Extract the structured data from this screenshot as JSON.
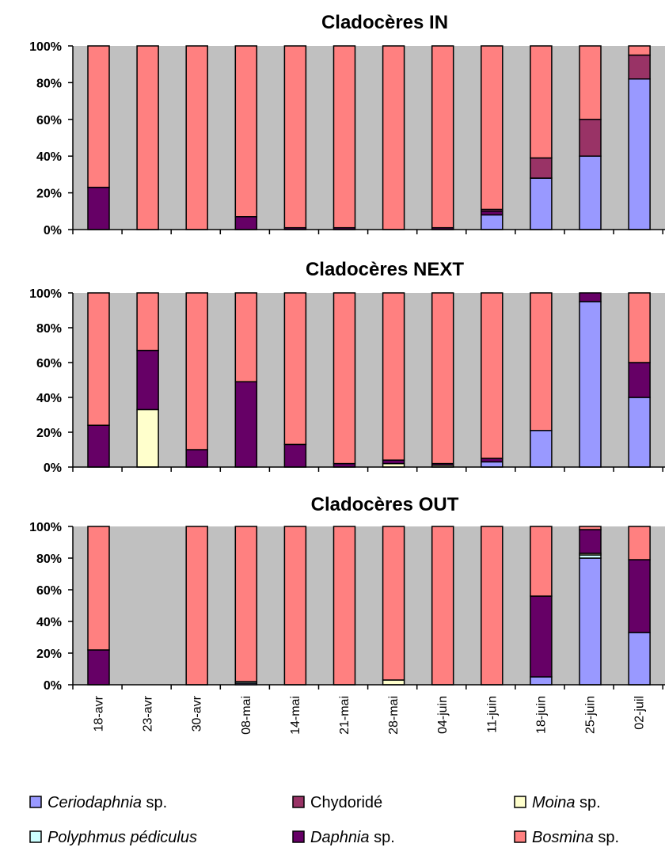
{
  "chart_data": {
    "type": "bar",
    "stacked": true,
    "normalized": true,
    "categories": [
      "18-avr",
      "23-avr",
      "30-avr",
      "08-mai",
      "14-mai",
      "21-mai",
      "28-mai",
      "04-juin",
      "11-juin",
      "18-juin",
      "25-juin",
      "02-juil"
    ],
    "ylim": [
      0,
      100
    ],
    "yticks": [
      "0%",
      "20%",
      "40%",
      "60%",
      "80%",
      "100%"
    ],
    "grid": false,
    "legend": {
      "position": "bottom",
      "items": [
        {
          "key": "ceriodaphnia",
          "italic": "Ceriodaphnia",
          "rest": " sp."
        },
        {
          "key": "chydoride",
          "italic": "",
          "rest": "Chydoridé"
        },
        {
          "key": "moina",
          "italic": "Moina",
          "rest": " sp."
        },
        {
          "key": "polyphemus",
          "italic": "Polyphmus pédiculus",
          "rest": ""
        },
        {
          "key": "daphnia",
          "italic": "Daphnia",
          "rest": " sp."
        },
        {
          "key": "bosmina",
          "italic": "Bosmina",
          "rest": " sp."
        }
      ]
    },
    "colors": {
      "ceriodaphnia": "#9999FF",
      "polyphemus": "#CCFFFF",
      "moina": "#FFFFCC",
      "daphnia": "#660066",
      "chydoride": "#993366",
      "bosmina": "#FF8080",
      "plot_bg": "#C0C0C0"
    },
    "stack_order": [
      "ceriodaphnia",
      "polyphemus",
      "moina",
      "daphnia",
      "chydoride",
      "bosmina"
    ],
    "panels": [
      {
        "title": "Cladocères IN",
        "series": {
          "ceriodaphnia": [
            0,
            0,
            0,
            0,
            0,
            0,
            0,
            0,
            8,
            28,
            40,
            82
          ],
          "polyphemus": [
            0,
            0,
            0,
            0,
            0,
            0,
            0,
            0,
            0,
            0,
            0,
            0
          ],
          "moina": [
            0,
            0,
            0,
            0,
            0,
            0,
            0,
            0,
            0,
            0,
            0,
            0
          ],
          "daphnia": [
            23,
            0,
            0,
            7,
            1,
            1,
            0,
            1,
            2,
            0,
            0,
            0
          ],
          "chydoride": [
            0,
            0,
            0,
            0,
            0,
            0,
            0,
            0,
            1,
            11,
            20,
            13
          ],
          "bosmina": [
            77,
            100,
            100,
            93,
            99,
            99,
            100,
            99,
            89,
            61,
            40,
            5
          ]
        }
      },
      {
        "title": "Cladocères NEXT",
        "series": {
          "ceriodaphnia": [
            0,
            0,
            0,
            0,
            0,
            0,
            0,
            0,
            3,
            21,
            95,
            40
          ],
          "polyphemus": [
            0,
            0,
            0,
            0,
            0,
            0,
            0,
            0,
            0,
            0,
            0,
            0
          ],
          "moina": [
            0,
            33,
            0,
            0,
            0,
            0,
            2,
            1,
            0,
            0,
            0,
            0
          ],
          "daphnia": [
            24,
            34,
            10,
            49,
            13,
            2,
            2,
            1,
            2,
            0,
            5,
            20
          ],
          "chydoride": [
            0,
            0,
            0,
            0,
            0,
            0,
            0,
            0,
            0,
            0,
            0,
            0
          ],
          "bosmina": [
            76,
            33,
            90,
            51,
            87,
            98,
            96,
            98,
            95,
            79,
            0,
            40
          ]
        }
      },
      {
        "title": "Cladocères OUT",
        "series": {
          "ceriodaphnia": [
            0,
            0,
            0,
            1,
            0,
            0,
            0,
            0,
            0,
            5,
            80,
            33
          ],
          "polyphemus": [
            0,
            0,
            0,
            1,
            0,
            0,
            0,
            0,
            0,
            0,
            2,
            0
          ],
          "moina": [
            0,
            0,
            0,
            0,
            0,
            0,
            3,
            0,
            0,
            0,
            1,
            0
          ],
          "daphnia": [
            22,
            0,
            0,
            0,
            0,
            0,
            0,
            0,
            0,
            51,
            15,
            46
          ],
          "chydoride": [
            0,
            0,
            0,
            0,
            0,
            0,
            0,
            0,
            0,
            0,
            0,
            0
          ],
          "bosmina": [
            78,
            0,
            100,
            98,
            100,
            100,
            97,
            100,
            100,
            44,
            2,
            21
          ]
        }
      }
    ]
  }
}
